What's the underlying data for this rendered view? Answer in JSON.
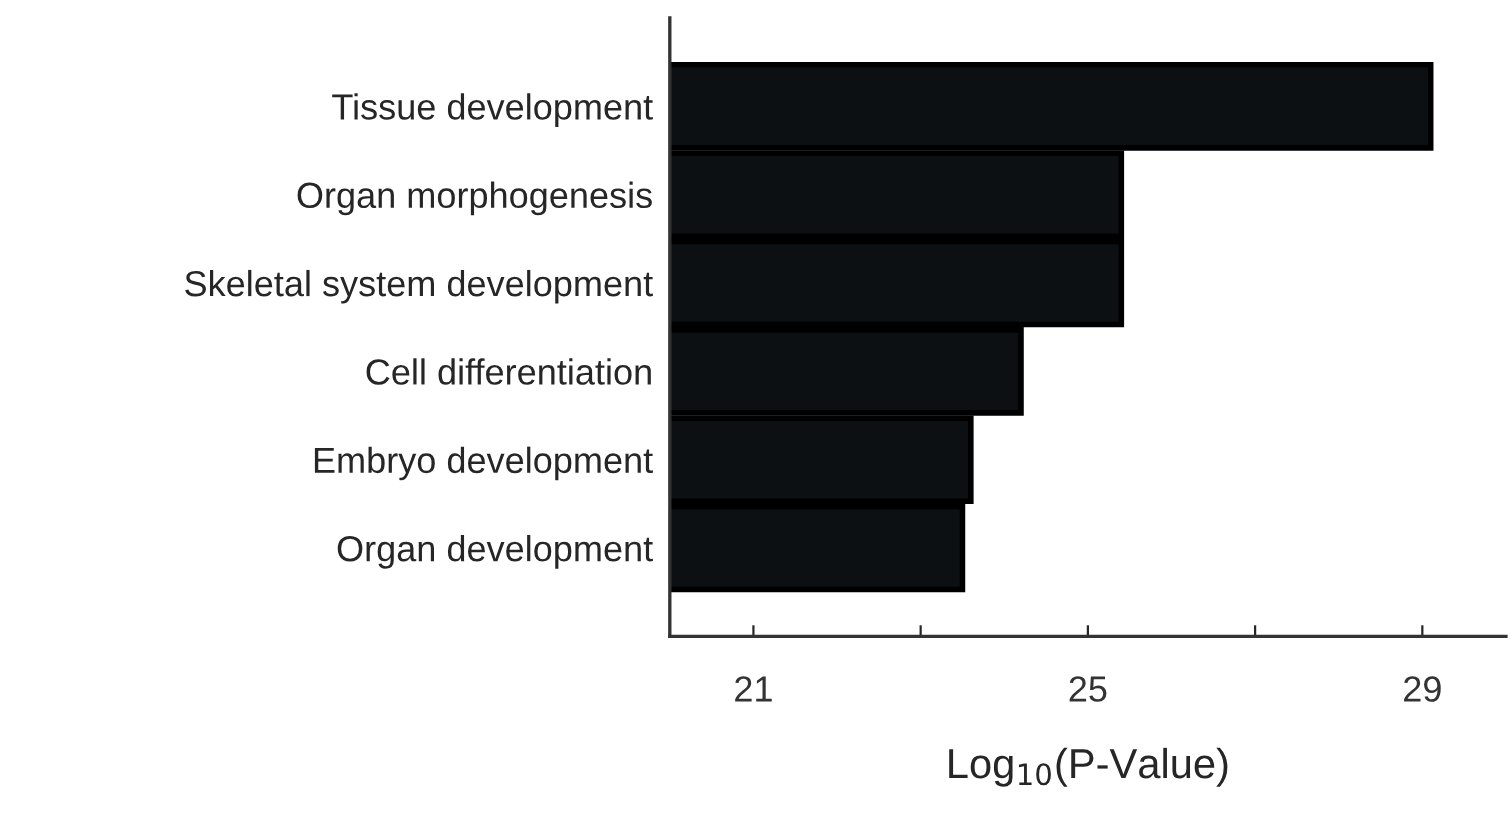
{
  "chart_data": {
    "type": "bar",
    "orientation": "horizontal",
    "categories": [
      "Tissue development",
      "Organ morphogenesis",
      "Skeletal system development",
      "Cell differentiation",
      "Embryo development",
      "Organ development"
    ],
    "values": [
      29.1,
      25.4,
      25.4,
      24.2,
      23.6,
      23.5
    ],
    "color": "#0d1013",
    "xlabel": "Log$_{10}$(P-Value)",
    "xlim": [
      20,
      30
    ],
    "xticks": [
      21,
      {
        "value": 23,
        "label": null
      },
      25,
      {
        "value": 27,
        "label": null
      },
      29
    ],
    "grid": false,
    "legend": false
  }
}
